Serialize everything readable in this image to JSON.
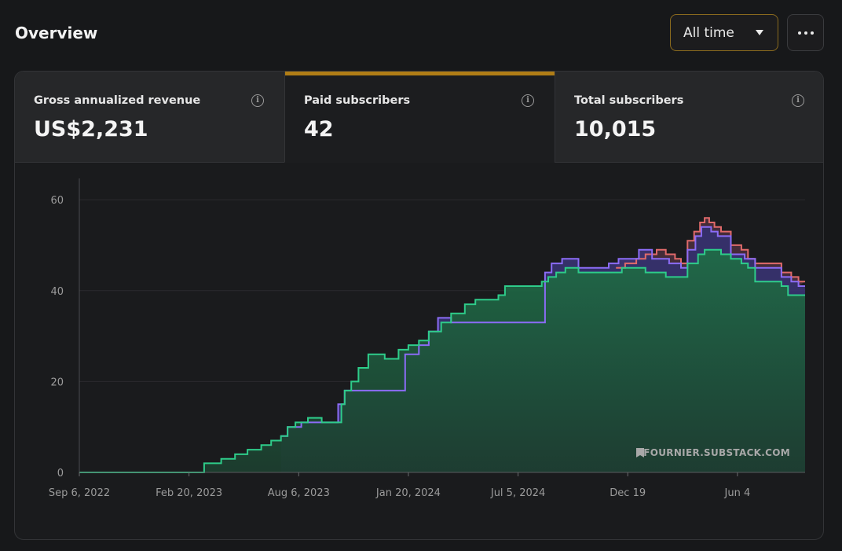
{
  "header": {
    "title": "Overview",
    "range_label": "All time"
  },
  "stats": [
    {
      "label": "Gross annualized revenue",
      "value": "US$2,231",
      "active": false
    },
    {
      "label": "Paid subscribers",
      "value": "42",
      "active": true
    },
    {
      "label": "Total subscribers",
      "value": "10,015",
      "active": false
    }
  ],
  "colors": {
    "accent": "#b07d16",
    "green": "#2ecc8a",
    "purple": "#8b6cf6",
    "red": "#e06a6a"
  },
  "chart_data": {
    "type": "area",
    "title": "",
    "xlabel": "",
    "ylabel": "",
    "ylim": [
      0,
      64
    ],
    "x_range": [
      "2022-09-06",
      "2025-09-15"
    ],
    "yticks": [
      "0",
      "20",
      "40",
      "60"
    ],
    "xticks": [
      {
        "label": "Sep 6, 2022",
        "date": "2022-09-06"
      },
      {
        "label": "Feb 20, 2023",
        "date": "2023-02-20"
      },
      {
        "label": "Aug 6, 2023",
        "date": "2023-08-06"
      },
      {
        "label": "Jan 20, 2024",
        "date": "2024-01-20"
      },
      {
        "label": "Jul 5, 2024",
        "date": "2024-07-05"
      },
      {
        "label": "Dec 19",
        "date": "2024-12-19"
      },
      {
        "label": "Jun 4",
        "date": "2025-06-04"
      }
    ],
    "series": [
      {
        "color": "#e06a6a",
        "points": [
          [
            "2024-12-01",
            45
          ],
          [
            "2024-12-15",
            46
          ],
          [
            "2025-01-01",
            47
          ],
          [
            "2025-01-15",
            48
          ],
          [
            "2025-02-01",
            49
          ],
          [
            "2025-02-15",
            48
          ],
          [
            "2025-03-01",
            47
          ],
          [
            "2025-03-10",
            46
          ],
          [
            "2025-03-20",
            51
          ],
          [
            "2025-03-30",
            53
          ],
          [
            "2025-04-08",
            55
          ],
          [
            "2025-04-15",
            56
          ],
          [
            "2025-04-22",
            55
          ],
          [
            "2025-04-30",
            54
          ],
          [
            "2025-05-10",
            53
          ],
          [
            "2025-05-25",
            50
          ],
          [
            "2025-06-10",
            49
          ],
          [
            "2025-06-20",
            47
          ],
          [
            "2025-07-01",
            46
          ],
          [
            "2025-08-10",
            44
          ],
          [
            "2025-08-25",
            43
          ],
          [
            "2025-09-05",
            42
          ]
        ]
      },
      {
        "color": "#8b6cf6",
        "points": [
          [
            "2023-07-10",
            8
          ],
          [
            "2023-07-20",
            10
          ],
          [
            "2023-08-10",
            11
          ],
          [
            "2023-10-05",
            15
          ],
          [
            "2023-10-15",
            18
          ],
          [
            "2024-01-15",
            26
          ],
          [
            "2024-02-05",
            28
          ],
          [
            "2024-02-20",
            31
          ],
          [
            "2024-03-05",
            34
          ],
          [
            "2024-03-25",
            33
          ],
          [
            "2024-08-15",
            44
          ],
          [
            "2024-08-25",
            46
          ],
          [
            "2024-09-10",
            47
          ],
          [
            "2024-10-05",
            45
          ],
          [
            "2024-11-01",
            45
          ],
          [
            "2024-11-20",
            46
          ],
          [
            "2024-12-05",
            47
          ],
          [
            "2025-01-05",
            49
          ],
          [
            "2025-01-25",
            47
          ],
          [
            "2025-02-20",
            46
          ],
          [
            "2025-03-10",
            45
          ],
          [
            "2025-03-20",
            49
          ],
          [
            "2025-04-01",
            52
          ],
          [
            "2025-04-10",
            54
          ],
          [
            "2025-04-25",
            53
          ],
          [
            "2025-05-05",
            52
          ],
          [
            "2025-05-25",
            48
          ],
          [
            "2025-06-15",
            47
          ],
          [
            "2025-07-01",
            45
          ],
          [
            "2025-08-10",
            43
          ],
          [
            "2025-08-25",
            42
          ],
          [
            "2025-09-05",
            41
          ]
        ]
      },
      {
        "color": "#2ecc8a",
        "points": [
          [
            "2022-09-06",
            0
          ],
          [
            "2023-03-10",
            0
          ],
          [
            "2023-03-15",
            2
          ],
          [
            "2023-04-10",
            3
          ],
          [
            "2023-05-01",
            4
          ],
          [
            "2023-05-20",
            5
          ],
          [
            "2023-06-10",
            6
          ],
          [
            "2023-06-25",
            7
          ],
          [
            "2023-07-10",
            8
          ],
          [
            "2023-07-20",
            10
          ],
          [
            "2023-08-01",
            11
          ],
          [
            "2023-08-20",
            12
          ],
          [
            "2023-09-10",
            11
          ],
          [
            "2023-10-05",
            11
          ],
          [
            "2023-10-10",
            15
          ],
          [
            "2023-10-15",
            18
          ],
          [
            "2023-10-25",
            20
          ],
          [
            "2023-11-05",
            23
          ],
          [
            "2023-11-20",
            26
          ],
          [
            "2023-12-15",
            25
          ],
          [
            "2024-01-05",
            27
          ],
          [
            "2024-01-20",
            28
          ],
          [
            "2024-02-05",
            29
          ],
          [
            "2024-02-20",
            31
          ],
          [
            "2024-03-10",
            33
          ],
          [
            "2024-03-25",
            35
          ],
          [
            "2024-04-15",
            37
          ],
          [
            "2024-05-01",
            38
          ],
          [
            "2024-05-20",
            38
          ],
          [
            "2024-06-05",
            39
          ],
          [
            "2024-06-15",
            41
          ],
          [
            "2024-07-05",
            41
          ],
          [
            "2024-08-10",
            42
          ],
          [
            "2024-08-20",
            43
          ],
          [
            "2024-09-01",
            44
          ],
          [
            "2024-09-15",
            45
          ],
          [
            "2024-10-05",
            44
          ],
          [
            "2024-11-15",
            44
          ],
          [
            "2024-12-10",
            45
          ],
          [
            "2025-01-15",
            44
          ],
          [
            "2025-02-15",
            43
          ],
          [
            "2025-03-15",
            43
          ],
          [
            "2025-03-20",
            46
          ],
          [
            "2025-04-05",
            48
          ],
          [
            "2025-04-15",
            49
          ],
          [
            "2025-05-10",
            48
          ],
          [
            "2025-05-25",
            47
          ],
          [
            "2025-06-10",
            46
          ],
          [
            "2025-06-20",
            45
          ],
          [
            "2025-07-01",
            42
          ],
          [
            "2025-08-10",
            41
          ],
          [
            "2025-08-20",
            39
          ],
          [
            "2025-09-05",
            39
          ],
          [
            "2025-09-15",
            39
          ]
        ]
      }
    ],
    "grid": true,
    "legend": "none",
    "watermark": "FOURNIER.SUBSTACK.COM"
  }
}
